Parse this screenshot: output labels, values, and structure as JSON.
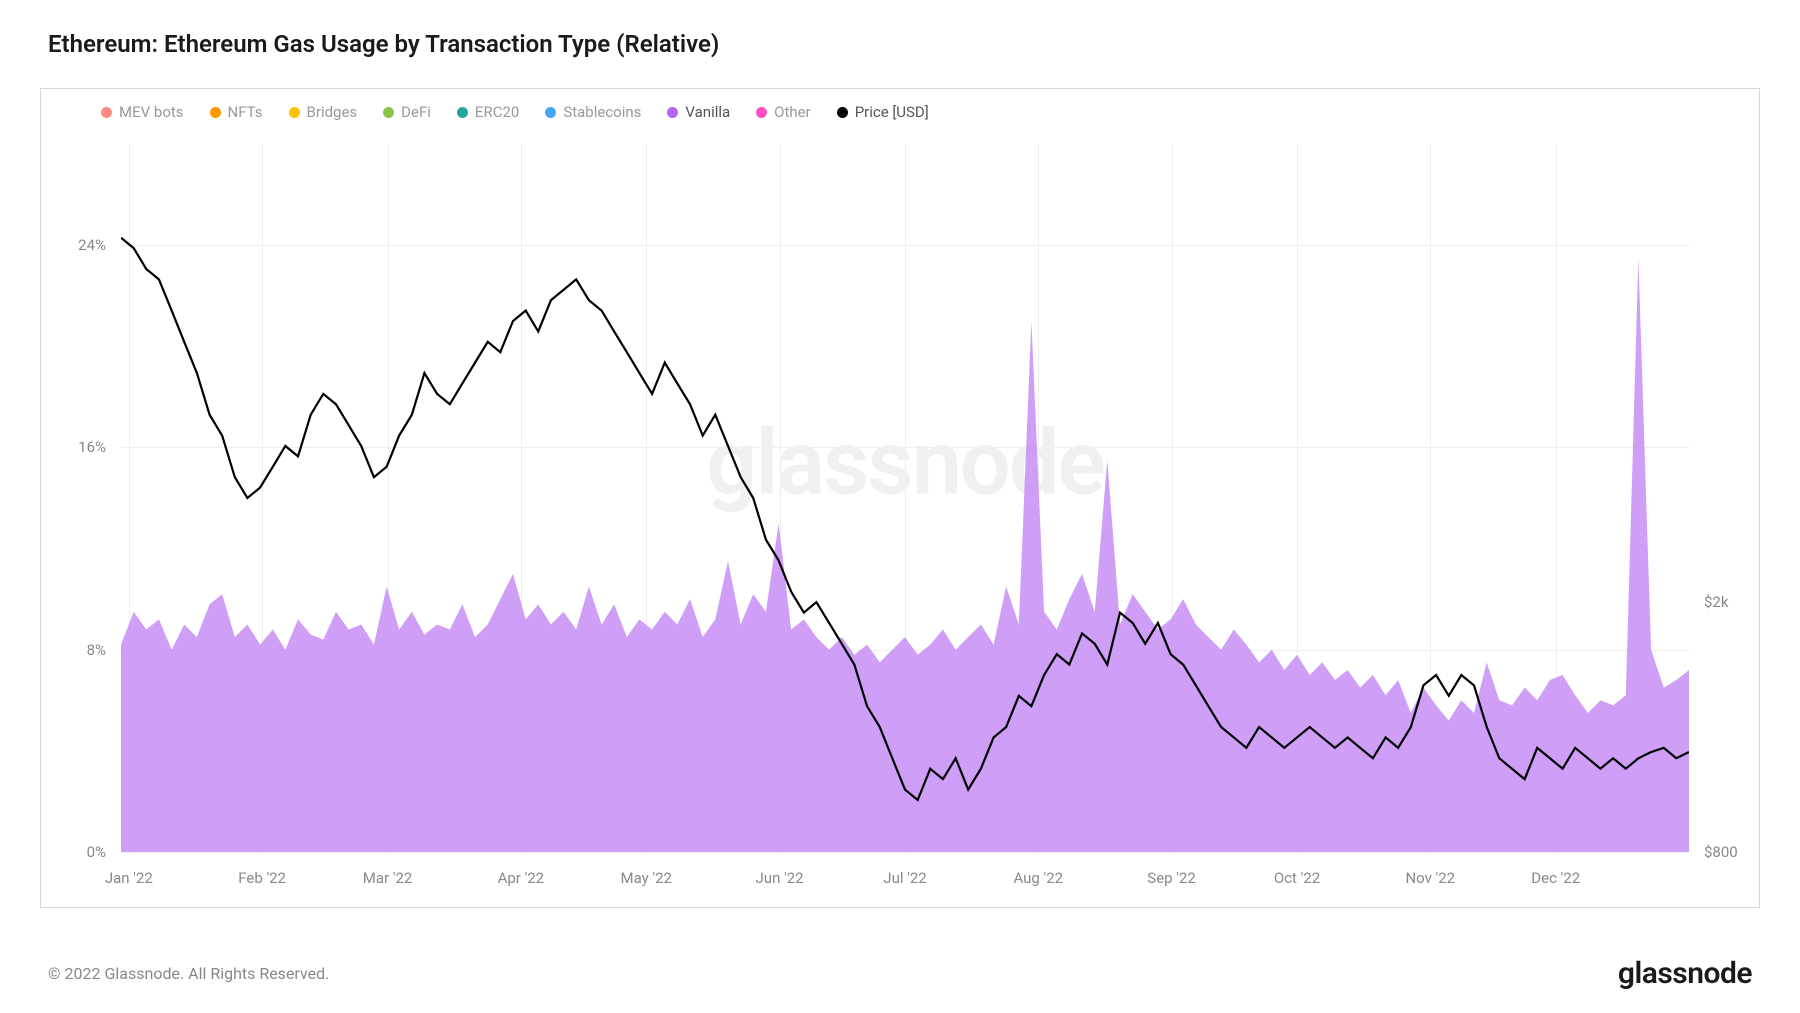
{
  "title": "Ethereum: Ethereum Gas Usage by Transaction Type (Relative)",
  "watermark": "glassnode",
  "footer": "© 2022 Glassnode. All Rights Reserved.",
  "brand": "glassnode",
  "chart": {
    "type": "area+line",
    "background_color": "#ffffff",
    "border_color": "#d8d8d8",
    "grid_color": "#eeeeee",
    "legend": [
      {
        "label": "MEV bots",
        "color": "#ff8a80",
        "active": false
      },
      {
        "label": "NFTs",
        "color": "#ff9800",
        "active": false
      },
      {
        "label": "Bridges",
        "color": "#ffc107",
        "active": false
      },
      {
        "label": "DeFi",
        "color": "#8bc34a",
        "active": false
      },
      {
        "label": "ERC20",
        "color": "#26a69a",
        "active": false
      },
      {
        "label": "Stablecoins",
        "color": "#42a5f5",
        "active": false
      },
      {
        "label": "Vanilla",
        "color": "#b366f2",
        "active": true
      },
      {
        "label": "Other",
        "color": "#ff4fc3",
        "active": false
      },
      {
        "label": "Price [USD]",
        "color": "#000000",
        "active": true
      }
    ],
    "y_left": {
      "min": 0,
      "max": 28,
      "ticks": [
        0,
        8,
        16,
        24
      ],
      "tick_labels": [
        "0%",
        "8%",
        "16%",
        "24%"
      ],
      "fontsize": 15,
      "color": "#888888"
    },
    "y_right": {
      "min": 800,
      "max": 4200,
      "ticks": [
        800,
        2000
      ],
      "tick_labels": [
        "$800",
        "$2k"
      ],
      "fontsize": 15,
      "color": "#888888"
    },
    "x_axis": {
      "labels": [
        "Jan '22",
        "Feb '22",
        "Mar '22",
        "Apr '22",
        "May '22",
        "Jun '22",
        "Jul '22",
        "Aug '22",
        "Sep '22",
        "Oct '22",
        "Nov '22",
        "Dec '22"
      ],
      "positions_pct": [
        0.5,
        9.0,
        17.0,
        25.5,
        33.5,
        42.0,
        50.0,
        58.5,
        67.0,
        75.0,
        83.5,
        91.5
      ],
      "fontsize": 15,
      "color": "#888888"
    },
    "area_series": {
      "name": "Vanilla",
      "color": "#c58af5",
      "opacity": 0.82,
      "values": [
        8.2,
        9.5,
        8.8,
        9.2,
        8.0,
        9.0,
        8.5,
        9.8,
        10.2,
        8.5,
        9.0,
        8.2,
        8.8,
        8.0,
        9.2,
        8.6,
        8.4,
        9.5,
        8.8,
        9.0,
        8.2,
        10.5,
        8.8,
        9.5,
        8.6,
        9.0,
        8.8,
        9.8,
        8.5,
        9.0,
        10.0,
        11.0,
        9.2,
        9.8,
        9.0,
        9.5,
        8.8,
        10.5,
        9.0,
        9.8,
        8.5,
        9.2,
        8.8,
        9.5,
        9.0,
        10.0,
        8.5,
        9.2,
        11.5,
        9.0,
        10.2,
        9.5,
        13.0,
        8.8,
        9.2,
        8.5,
        8.0,
        8.5,
        7.8,
        8.2,
        7.5,
        8.0,
        8.5,
        7.8,
        8.2,
        8.8,
        8.0,
        8.5,
        9.0,
        8.2,
        10.5,
        9.0,
        21.0,
        9.5,
        8.8,
        10.0,
        11.0,
        9.5,
        15.5,
        9.0,
        10.2,
        9.5,
        8.8,
        9.2,
        10.0,
        9.0,
        8.5,
        8.0,
        8.8,
        8.2,
        7.5,
        8.0,
        7.2,
        7.8,
        7.0,
        7.5,
        6.8,
        7.2,
        6.5,
        7.0,
        6.2,
        6.8,
        5.5,
        6.5,
        5.8,
        5.2,
        6.0,
        5.5,
        7.5,
        6.0,
        5.8,
        6.5,
        6.0,
        6.8,
        7.0,
        6.2,
        5.5,
        6.0,
        5.8,
        6.2,
        23.5,
        8.0,
        6.5,
        6.8,
        7.2
      ]
    },
    "line_series": {
      "name": "Price [USD]",
      "color": "#000000",
      "width": 2.2,
      "values": [
        3750,
        3700,
        3600,
        3550,
        3400,
        3250,
        3100,
        2900,
        2800,
        2600,
        2500,
        2550,
        2650,
        2750,
        2700,
        2900,
        3000,
        2950,
        2850,
        2750,
        2600,
        2650,
        2800,
        2900,
        3100,
        3000,
        2950,
        3050,
        3150,
        3250,
        3200,
        3350,
        3400,
        3300,
        3450,
        3500,
        3550,
        3450,
        3400,
        3300,
        3200,
        3100,
        3000,
        3150,
        3050,
        2950,
        2800,
        2900,
        2750,
        2600,
        2500,
        2300,
        2200,
        2050,
        1950,
        2000,
        1900,
        1800,
        1700,
        1500,
        1400,
        1250,
        1100,
        1050,
        1200,
        1150,
        1250,
        1100,
        1200,
        1350,
        1400,
        1550,
        1500,
        1650,
        1750,
        1700,
        1850,
        1800,
        1700,
        1950,
        1900,
        1800,
        1900,
        1750,
        1700,
        1600,
        1500,
        1400,
        1350,
        1300,
        1400,
        1350,
        1300,
        1350,
        1400,
        1350,
        1300,
        1350,
        1300,
        1250,
        1350,
        1300,
        1400,
        1600,
        1650,
        1550,
        1650,
        1600,
        1400,
        1250,
        1200,
        1150,
        1300,
        1250,
        1200,
        1300,
        1250,
        1200,
        1250,
        1200,
        1250,
        1280,
        1300,
        1250,
        1280
      ]
    },
    "title_fontsize": 24
  }
}
